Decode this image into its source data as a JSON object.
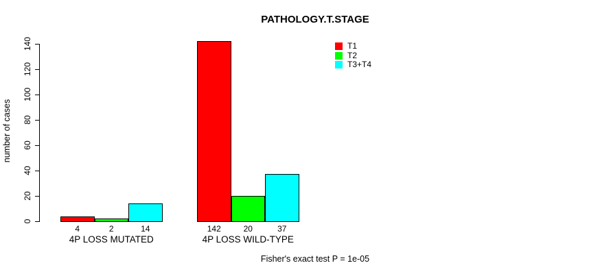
{
  "chart_data": {
    "type": "bar",
    "title": "PATHOLOGY.T.STAGE",
    "ylabel": "number of cases",
    "xlabel": "",
    "categories": [
      "4P LOSS MUTATED",
      "4P LOSS WILD-TYPE"
    ],
    "series": [
      {
        "name": "T1",
        "color": "#ff0000",
        "values": [
          4,
          142
        ]
      },
      {
        "name": "T2",
        "color": "#00ff00",
        "values": [
          2,
          20
        ]
      },
      {
        "name": "T3+T4",
        "color": "#00ffff",
        "values": [
          14,
          37
        ]
      }
    ],
    "value_labels": [
      [
        "4",
        "2",
        "14"
      ],
      [
        "142",
        "20",
        "37"
      ]
    ],
    "y_ticks": [
      0,
      20,
      40,
      60,
      80,
      100,
      120,
      140
    ],
    "ylim": [
      0,
      145
    ],
    "grid": false,
    "legend_position": "top-right",
    "bar_border_color": "#000000",
    "axis_color": "#000000",
    "annotation": "Fisher's exact test P = 1e-05"
  }
}
